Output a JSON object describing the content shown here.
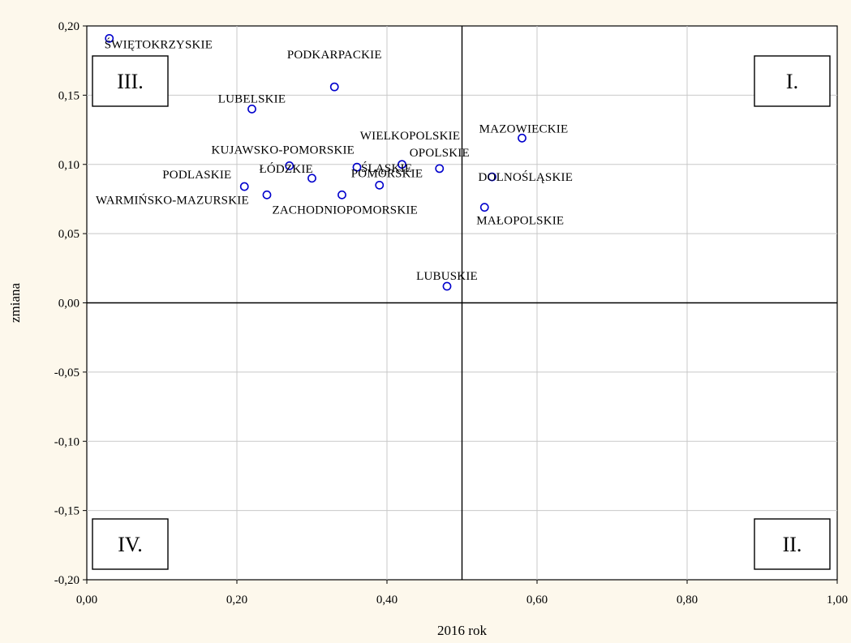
{
  "chart_data": {
    "type": "scatter",
    "xlabel": "2016 rok",
    "ylabel": "zmiana",
    "xlim": [
      0,
      1
    ],
    "ylim": [
      -0.2,
      0.2
    ],
    "grid": true,
    "reference_lines": {
      "x": 0.5,
      "y": 0.0
    },
    "xticks": [
      {
        "v": 0.0,
        "label": "0,00"
      },
      {
        "v": 0.2,
        "label": "0,20"
      },
      {
        "v": 0.4,
        "label": "0,40"
      },
      {
        "v": 0.6,
        "label": "0,60"
      },
      {
        "v": 0.8,
        "label": "0,80"
      },
      {
        "v": 1.0,
        "label": "1,00"
      }
    ],
    "yticks": [
      {
        "v": 0.2,
        "label": "0,20"
      },
      {
        "v": 0.15,
        "label": "0,15"
      },
      {
        "v": 0.1,
        "label": "0,10"
      },
      {
        "v": 0.05,
        "label": "0,05"
      },
      {
        "v": 0.0,
        "label": "0,00"
      },
      {
        "v": -0.05,
        "label": "-0,05"
      },
      {
        "v": -0.1,
        "label": "-0,10"
      },
      {
        "v": -0.15,
        "label": "-0,15"
      },
      {
        "v": -0.2,
        "label": "-0,20"
      }
    ],
    "point_color": "#0000cc",
    "quadrants": [
      {
        "label": "I.",
        "position": "top-right"
      },
      {
        "label": "II.",
        "position": "bottom-right"
      },
      {
        "label": "III.",
        "position": "top-left"
      },
      {
        "label": "IV.",
        "position": "bottom-left"
      }
    ],
    "points": [
      {
        "label": "ŚWIĘTOKRZYSKIE",
        "x": 0.03,
        "y": 0.191
      },
      {
        "label": "PODKARPACKIE",
        "x": 0.33,
        "y": 0.156
      },
      {
        "label": "LUBELSKIE",
        "x": 0.22,
        "y": 0.14
      },
      {
        "label": "MAZOWIECKIE",
        "x": 0.58,
        "y": 0.119
      },
      {
        "label": "WIELKOPOLSKIE",
        "x": 0.42,
        "y": 0.1
      },
      {
        "label": "OPOLSKIE",
        "x": 0.47,
        "y": 0.097
      },
      {
        "label": "KUJAWSKO-POMORSKIE",
        "x": 0.27,
        "y": 0.099
      },
      {
        "label": "ŚLĄSKIE",
        "x": 0.36,
        "y": 0.098
      },
      {
        "label": "ŁÓDZKIE",
        "x": 0.3,
        "y": 0.09
      },
      {
        "label": "DOLNOŚLĄSKIE",
        "x": 0.54,
        "y": 0.091
      },
      {
        "label": "POMORSKIE",
        "x": 0.39,
        "y": 0.085
      },
      {
        "label": "PODLASKIE",
        "x": 0.21,
        "y": 0.084
      },
      {
        "label": "WARMIŃSKO-MAZURSKIE",
        "x": 0.24,
        "y": 0.078
      },
      {
        "label": "ZACHODNIOPOMORSKIE",
        "x": 0.34,
        "y": 0.078
      },
      {
        "label": "MAŁOPOLSKIE",
        "x": 0.53,
        "y": 0.069
      },
      {
        "label": "LUBUSKIE",
        "x": 0.48,
        "y": 0.012
      }
    ]
  }
}
